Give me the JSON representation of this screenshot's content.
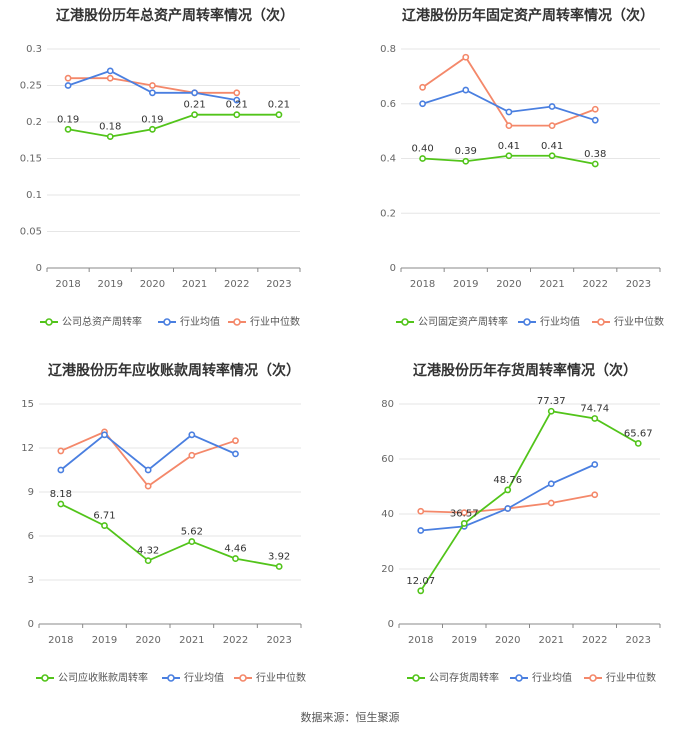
{
  "colors": {
    "company": "#52c41a",
    "industry_avg": "#4a7fe0",
    "industry_median": "#f4886a"
  },
  "source": "数据来源：恒生聚源",
  "chart_data": [
    {
      "type": "line",
      "title": "辽港股份历年总资产周转率情况（次）",
      "categories": [
        "2018",
        "2019",
        "2020",
        "2021",
        "2022",
        "2023"
      ],
      "ylim": [
        0,
        0.3
      ],
      "yticks": [
        "0",
        "0.05",
        "0.1",
        "0.15",
        "0.2",
        "0.25",
        "0.3"
      ],
      "series": [
        {
          "name": "公司总资产周转率",
          "values": [
            0.19,
            0.18,
            0.19,
            0.21,
            0.21,
            0.21
          ],
          "labels": [
            "0.19",
            "0.18",
            "0.19",
            "0.21",
            "0.21",
            "0.21"
          ]
        },
        {
          "name": "行业均值",
          "values": [
            0.25,
            0.27,
            0.24,
            0.24,
            0.23,
            null
          ]
        },
        {
          "name": "行业中位数",
          "values": [
            0.26,
            0.26,
            0.25,
            0.24,
            0.24,
            null
          ]
        }
      ]
    },
    {
      "type": "line",
      "title": "辽港股份历年固定资产周转率情况（次）",
      "categories": [
        "2018",
        "2019",
        "2020",
        "2021",
        "2022",
        "2023"
      ],
      "ylim": [
        0,
        0.8
      ],
      "yticks": [
        "0",
        "0.2",
        "0.4",
        "0.6",
        "0.8"
      ],
      "series": [
        {
          "name": "公司固定资产周转率",
          "values": [
            0.4,
            0.39,
            0.41,
            0.41,
            0.38,
            null
          ],
          "labels": [
            "0.40",
            "0.39",
            "0.41",
            "0.41",
            "0.38",
            ""
          ]
        },
        {
          "name": "行业均值",
          "values": [
            0.6,
            0.65,
            0.57,
            0.59,
            0.54,
            null
          ]
        },
        {
          "name": "行业中位数",
          "values": [
            0.66,
            0.77,
            0.52,
            0.52,
            0.58,
            null
          ]
        }
      ]
    },
    {
      "type": "line",
      "title": "辽港股份历年应收账款周转率情况（次）",
      "categories": [
        "2018",
        "2019",
        "2020",
        "2021",
        "2022",
        "2023"
      ],
      "ylim": [
        0,
        15
      ],
      "yticks": [
        "0",
        "3",
        "6",
        "9",
        "12",
        "15"
      ],
      "series": [
        {
          "name": "公司应收账款周转率",
          "values": [
            8.18,
            6.71,
            4.32,
            5.62,
            4.46,
            3.92
          ],
          "labels": [
            "8.18",
            "6.71",
            "4.32",
            "5.62",
            "4.46",
            "3.92"
          ]
        },
        {
          "name": "行业均值",
          "values": [
            10.5,
            12.9,
            10.5,
            12.9,
            11.6,
            null
          ]
        },
        {
          "name": "行业中位数",
          "values": [
            11.8,
            13.1,
            9.4,
            11.5,
            12.5,
            null
          ]
        }
      ]
    },
    {
      "type": "line",
      "title": "辽港股份历年存货周转率情况（次）",
      "categories": [
        "2018",
        "2019",
        "2020",
        "2021",
        "2022",
        "2023"
      ],
      "ylim": [
        0,
        80
      ],
      "yticks": [
        "0",
        "20",
        "40",
        "60",
        "80"
      ],
      "series": [
        {
          "name": "公司存货周转率",
          "values": [
            12.07,
            36.57,
            48.76,
            77.37,
            74.74,
            65.67
          ],
          "labels": [
            "12.07",
            "36.57",
            "48.76",
            "77.37",
            "74.74",
            "65.67"
          ]
        },
        {
          "name": "行业均值",
          "values": [
            34,
            35.5,
            42,
            51,
            58,
            null
          ]
        },
        {
          "name": "行业中位数",
          "values": [
            41,
            40.5,
            42,
            44,
            47,
            null
          ]
        }
      ]
    }
  ]
}
